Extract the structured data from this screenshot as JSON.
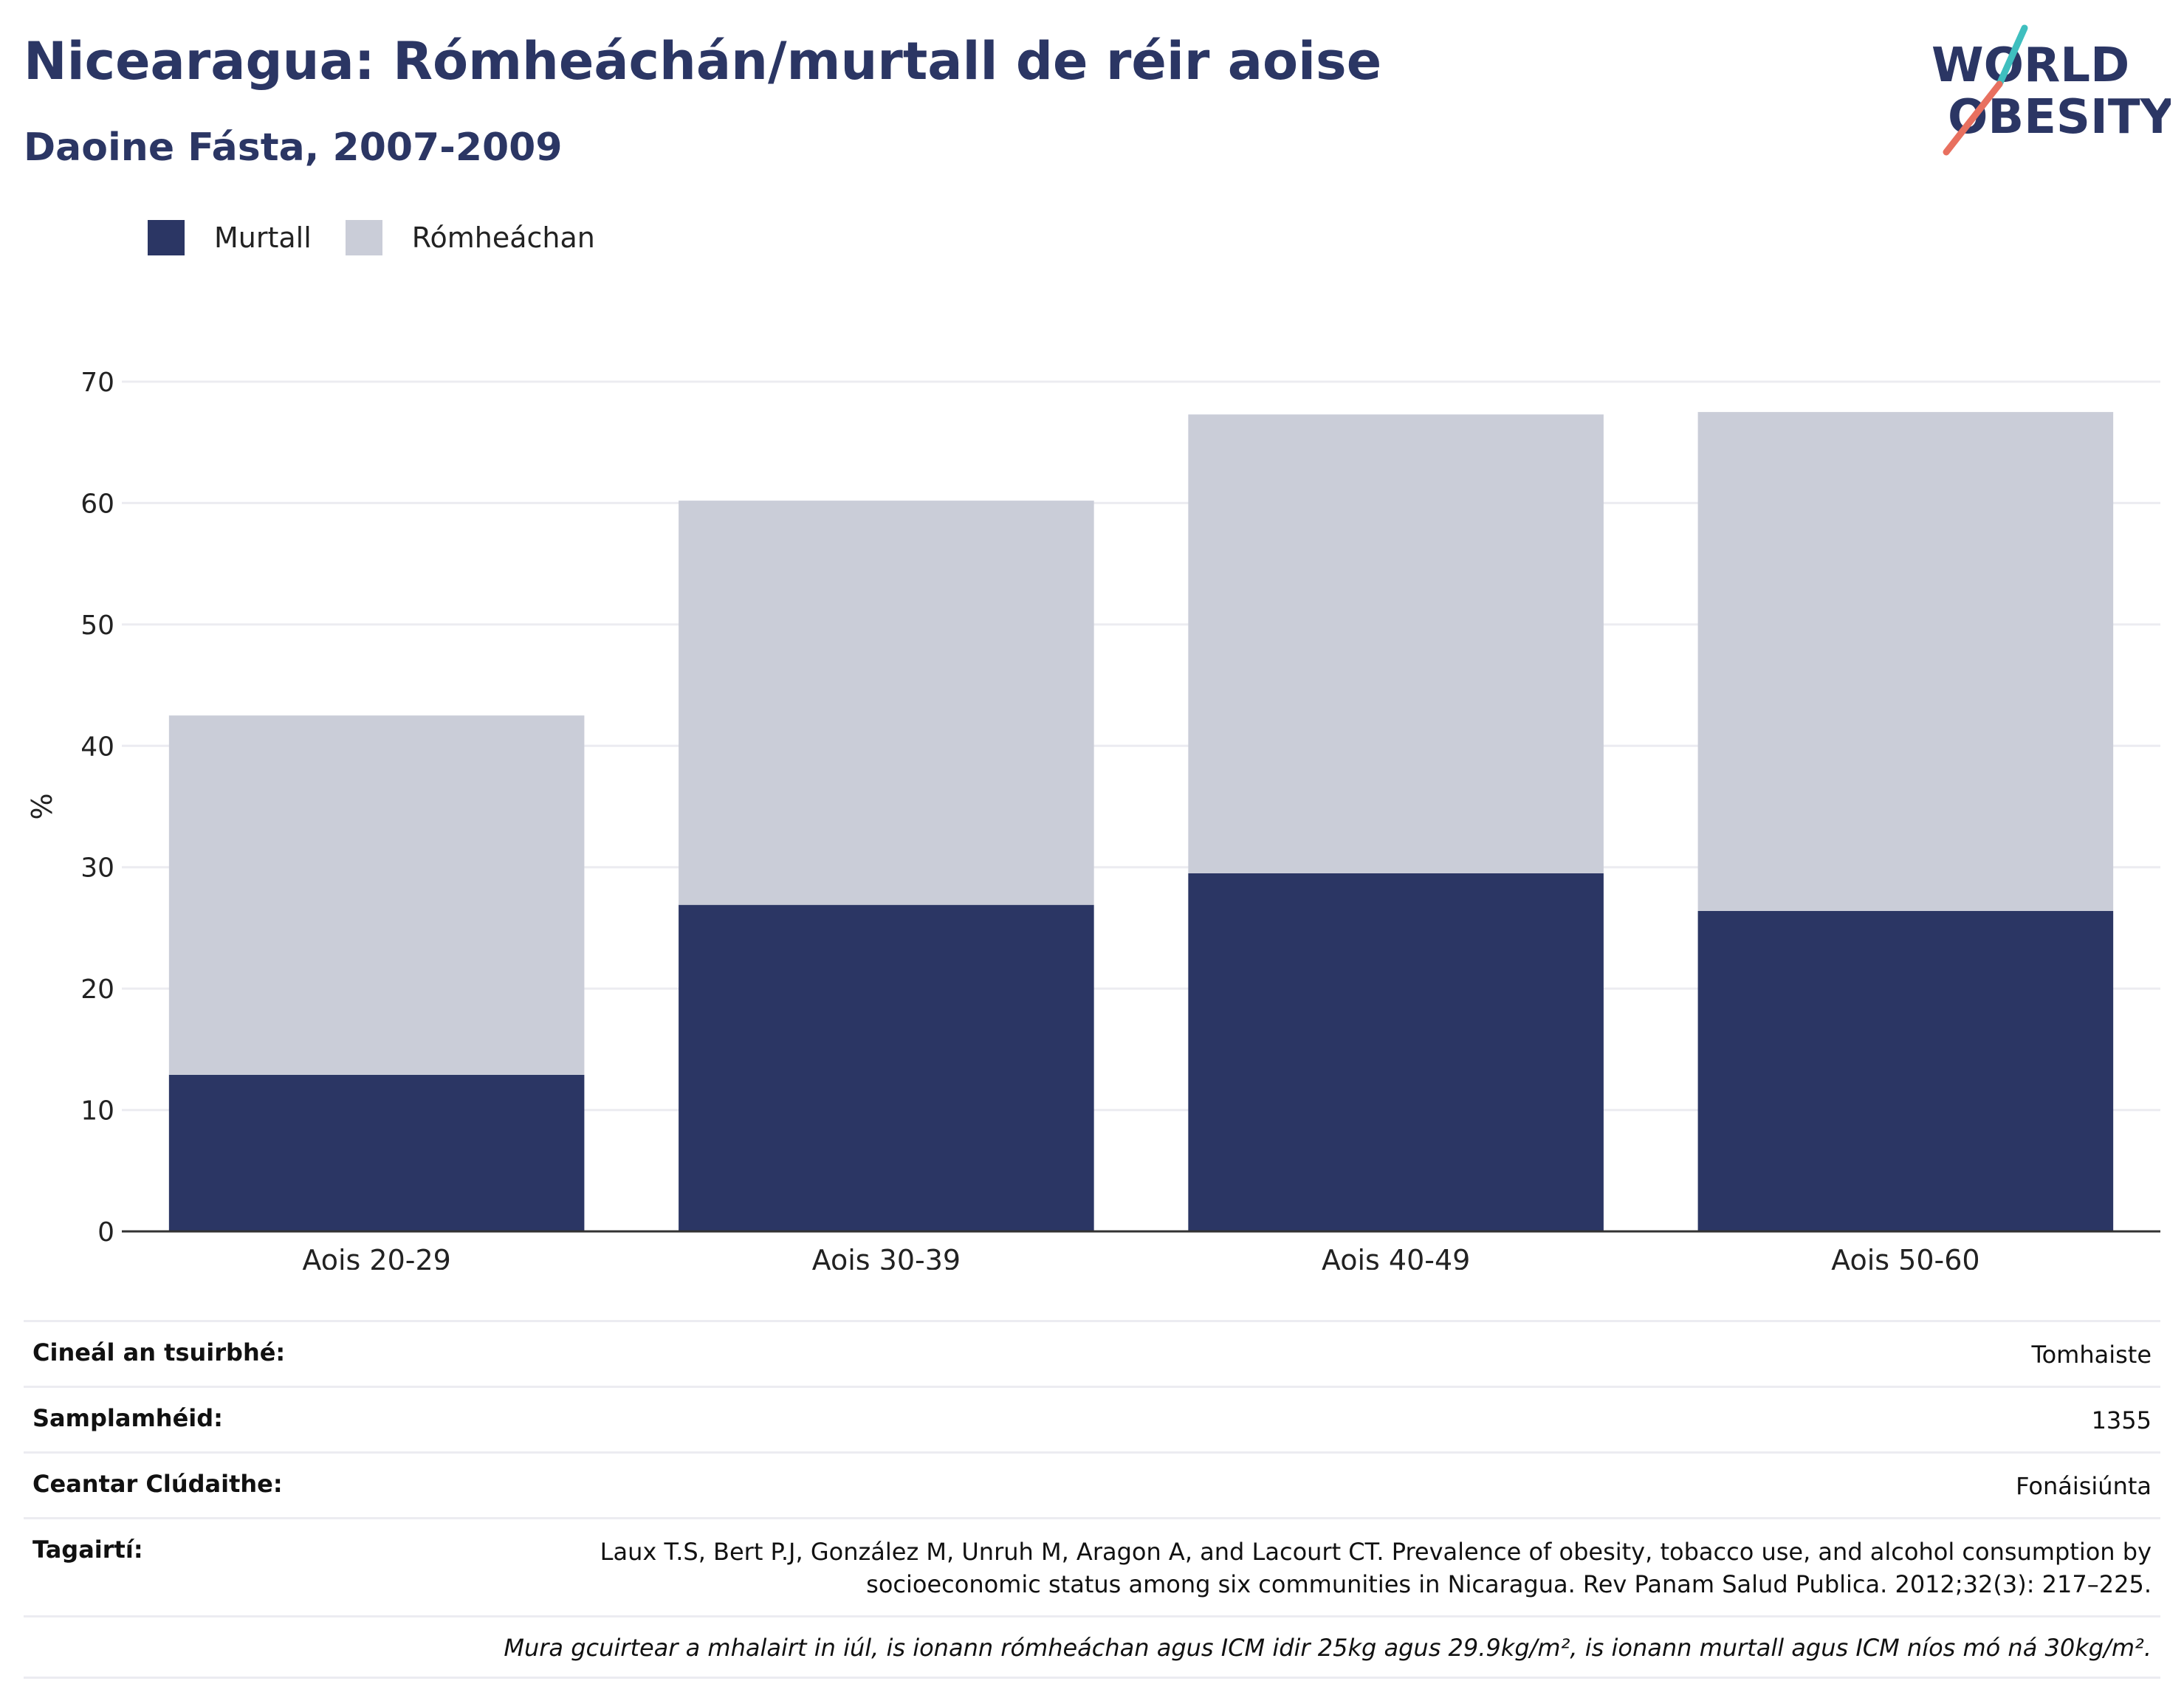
{
  "header": {
    "title": "Nicearagua: Rómheáchán/murtall de réir aoise",
    "subtitle": "Daoine Fásta, 2007-2009"
  },
  "logo": {
    "line1": "WORLD",
    "line2": "OBESITY"
  },
  "legend": [
    {
      "label": "Murtall",
      "color": "#2b3664"
    },
    {
      "label": "Rómheáchan",
      "color": "#cacdd8"
    }
  ],
  "chart_data": {
    "type": "bar",
    "stacked": true,
    "categories": [
      "Aois 20-29",
      "Aois 30-39",
      "Aois 40-49",
      "Aois 50-60"
    ],
    "series": [
      {
        "name": "Murtall",
        "color": "#2b3664",
        "values": [
          12.9,
          26.9,
          29.5,
          26.4
        ]
      },
      {
        "name": "Rómheáchan",
        "color": "#cacdd8",
        "values": [
          29.6,
          33.3,
          37.8,
          41.1
        ]
      }
    ],
    "ylabel": "%",
    "ylim": [
      0,
      70
    ],
    "yticks": [
      0,
      10,
      20,
      30,
      40,
      50,
      60,
      70
    ],
    "grid": true,
    "legend_position": "top-left"
  },
  "meta": [
    {
      "label": "Cineál an tsuirbhé:",
      "value": "Tomhaiste"
    },
    {
      "label": "Samplamhéid:",
      "value": "1355"
    },
    {
      "label": "Ceantar Clúdaithe:",
      "value": "Fonáisiúnta"
    },
    {
      "label": "Tagairtí:",
      "value_line1": "Laux T.S, Bert P.J, González M, Unruh M, Aragon A, and Lacourt CT. Prevalence of obesity, tobacco use, and alcohol consumption by",
      "value_line2": "socioeconomic status among six communities in Nicaragua. Rev Panam Salud Publica. 2012;32(3): 217–225."
    }
  ],
  "note": "Mura gcuirtear a mhalairt in iúl, is ionann rómheáchan agus ICM idir 25kg agus 29.9kg/m², is ionann murtall agus ICM níos mó ná 30kg/m²."
}
